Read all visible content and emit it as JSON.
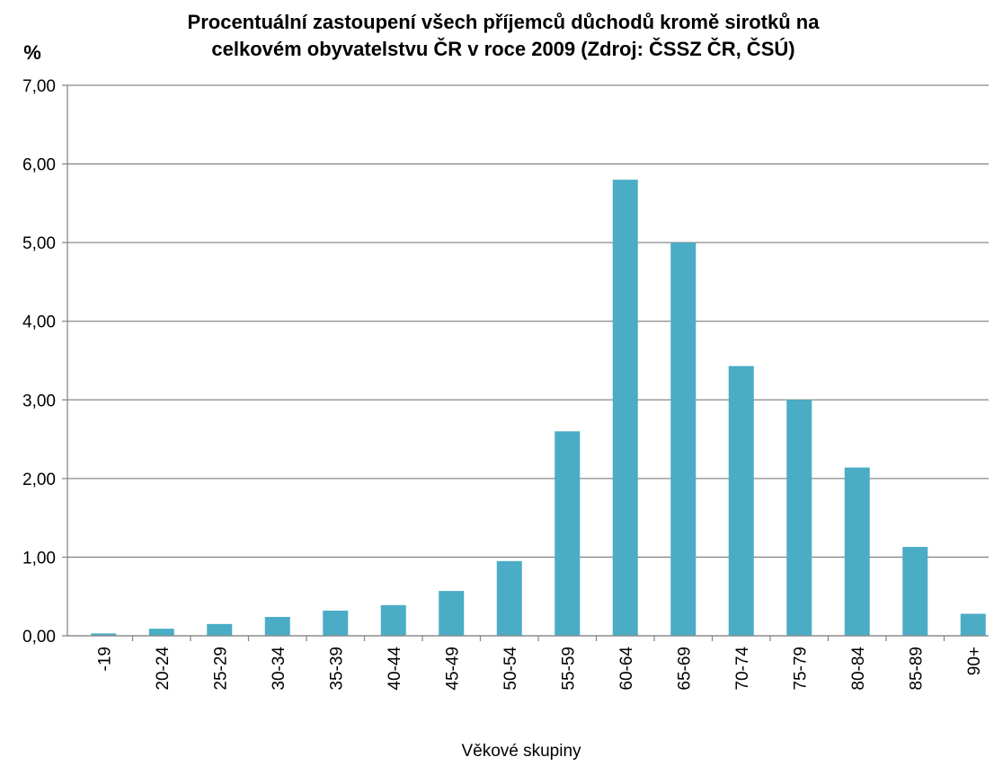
{
  "chart_data": {
    "type": "bar",
    "title": [
      "Procentuální zastoupení všech příjemců důchodů  kromě sirotků na",
      "celkovém obyvatelstvu ČR  v roce 2009 (Zdroj: ČSSZ ČR, ČSÚ)"
    ],
    "y_label": "%",
    "x_label": "Věkové skupiny",
    "categories": [
      "-19",
      "20-24",
      "25-29",
      "30-34",
      "35-39",
      "40-44",
      "45-49",
      "50-54",
      "55-59",
      "60-64",
      "65-69",
      "70-74",
      "75-79",
      "80-84",
      "85-89",
      "90+"
    ],
    "values": [
      0.03,
      0.09,
      0.15,
      0.24,
      0.32,
      0.39,
      0.57,
      0.95,
      2.6,
      5.8,
      5.0,
      3.43,
      3.0,
      2.14,
      1.13,
      0.28
    ],
    "color": "#4bacc6",
    "ylim": [
      0,
      7
    ],
    "yticks": [
      {
        "value": 0,
        "label": "0,00"
      },
      {
        "value": 1,
        "label": "1,00"
      },
      {
        "value": 2,
        "label": "2,00"
      },
      {
        "value": 3,
        "label": "3,00"
      },
      {
        "value": 4,
        "label": "4,00"
      },
      {
        "value": 5,
        "label": "5,00"
      },
      {
        "value": 6,
        "label": "6,00"
      },
      {
        "value": 7,
        "label": "7,00"
      }
    ],
    "grid": true
  }
}
